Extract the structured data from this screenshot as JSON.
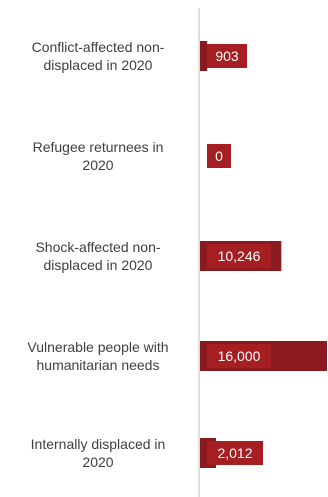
{
  "chart_data": {
    "type": "bar",
    "orientation": "horizontal",
    "categories": [
      [
        "Conflict-affected non-",
        "displaced in 2020"
      ],
      [
        "Refugee returnees in",
        "2020"
      ],
      [
        "Shock-affected non-",
        "displaced in 2020"
      ],
      [
        "Vulnerable people with",
        "humanitarian needs"
      ],
      [
        "Internally displaced in",
        "2020"
      ]
    ],
    "values": [
      903,
      0,
      10246,
      16000,
      2012
    ],
    "value_labels": [
      "903",
      "0",
      "10,246",
      "16,000",
      "2,012"
    ],
    "xlim": [
      0,
      16000
    ],
    "bar_color": "#8b1a1e",
    "label_box_color": "#a51e22",
    "grid": false,
    "legend": "none"
  }
}
